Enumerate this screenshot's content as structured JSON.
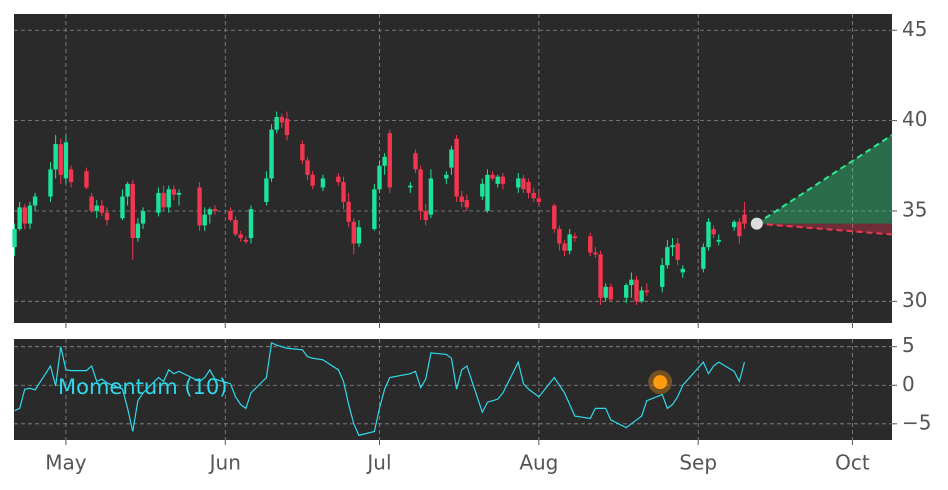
{
  "chart_data": [
    {
      "type": "candlestick",
      "grid": true,
      "up_color": "#1de39a",
      "down_color": "#f2364f",
      "xlim": [
        -10.1,
        160.7
      ],
      "xticks": [
        0,
        31,
        61,
        92,
        123,
        153
      ],
      "ylim": [
        28.8,
        45.9
      ],
      "yticks": [
        30,
        35,
        40,
        45
      ],
      "candles": [
        [
          -10,
          33.0,
          34.3,
          32.5,
          34.0
        ],
        [
          -9,
          34.0,
          35.5,
          33.9,
          35.2
        ],
        [
          -8,
          35.2,
          35.4,
          34.0,
          34.3
        ],
        [
          -7,
          34.3,
          35.5,
          34.0,
          35.3
        ],
        [
          -6,
          35.3,
          36.0,
          35.0,
          35.8
        ],
        [
          -3,
          35.8,
          37.7,
          35.5,
          37.3
        ],
        [
          -2,
          37.3,
          39.2,
          36.8,
          38.7
        ],
        [
          -1,
          38.7,
          39.0,
          36.5,
          37.0
        ],
        [
          0,
          36.8,
          39.2,
          36.5,
          38.8
        ],
        [
          1,
          37.3,
          37.5,
          36.3,
          36.6
        ],
        [
          4,
          37.2,
          37.4,
          36.2,
          36.3
        ],
        [
          5,
          35.8,
          36.0,
          34.9,
          35.0
        ],
        [
          6,
          35.0,
          35.6,
          34.6,
          35.3
        ],
        [
          7,
          35.3,
          35.6,
          34.7,
          34.9
        ],
        [
          8,
          34.9,
          35.2,
          34.2,
          34.5
        ],
        [
          11,
          34.6,
          36.2,
          34.5,
          35.8
        ],
        [
          12,
          35.8,
          36.6,
          35.3,
          36.5
        ],
        [
          13,
          36.5,
          36.7,
          32.3,
          33.5
        ],
        [
          14,
          33.5,
          34.6,
          33.3,
          34.3
        ],
        [
          15,
          34.3,
          35.2,
          34.0,
          35.0
        ],
        [
          18,
          34.9,
          36.3,
          34.7,
          36.0
        ],
        [
          19,
          36.0,
          36.4,
          35.0,
          35.2
        ],
        [
          20,
          35.2,
          36.4,
          34.9,
          36.2
        ],
        [
          21,
          36.2,
          36.4,
          35.6,
          35.9
        ],
        [
          22,
          35.9,
          36.2,
          35.3,
          36.0
        ],
        [
          26,
          36.3,
          36.6,
          33.9,
          34.2
        ],
        [
          27,
          34.2,
          35.2,
          33.9,
          34.8
        ],
        [
          28,
          34.8,
          35.2,
          34.3,
          35.1
        ],
        [
          29,
          35.1,
          35.3,
          34.8,
          35.0
        ],
        [
          32,
          35.0,
          35.2,
          34.4,
          34.5
        ],
        [
          33,
          34.5,
          34.7,
          33.6,
          33.7
        ],
        [
          34,
          33.7,
          33.9,
          33.3,
          33.5
        ],
        [
          35,
          33.4,
          33.6,
          33.2,
          33.3
        ],
        [
          36,
          33.5,
          35.3,
          33.2,
          35.1
        ],
        [
          39,
          35.5,
          37.2,
          35.3,
          36.8
        ],
        [
          40,
          36.8,
          39.8,
          36.6,
          39.5
        ],
        [
          41,
          39.5,
          40.5,
          39.3,
          40.2
        ],
        [
          42,
          40.2,
          40.4,
          39.6,
          39.9
        ],
        [
          43,
          40.1,
          40.5,
          38.9,
          39.2
        ],
        [
          46,
          38.7,
          38.9,
          37.6,
          37.8
        ],
        [
          47,
          37.8,
          38.0,
          36.7,
          37.0
        ],
        [
          48,
          37.0,
          37.2,
          36.2,
          36.4
        ],
        [
          50,
          36.3,
          37.0,
          36.1,
          36.8
        ],
        [
          53,
          36.9,
          37.1,
          36.4,
          36.6
        ],
        [
          54,
          36.6,
          36.9,
          35.1,
          35.5
        ],
        [
          55,
          35.5,
          36.0,
          34.1,
          34.4
        ],
        [
          56,
          34.4,
          34.6,
          32.6,
          33.2
        ],
        [
          57,
          33.2,
          34.5,
          33.0,
          34.1
        ],
        [
          60,
          34.0,
          36.5,
          33.9,
          36.2
        ],
        [
          61,
          36.2,
          37.8,
          36.0,
          37.5
        ],
        [
          62,
          37.5,
          38.2,
          37.0,
          38.0
        ],
        [
          63,
          39.3,
          39.5,
          36.0,
          36.3
        ],
        [
          67,
          36.3,
          36.6,
          36.0,
          36.4
        ],
        [
          68,
          38.2,
          38.4,
          37.1,
          37.3
        ],
        [
          69,
          37.3,
          37.5,
          34.5,
          35.0
        ],
        [
          70,
          35.0,
          35.4,
          34.2,
          34.5
        ],
        [
          71,
          34.8,
          37.3,
          34.6,
          36.8
        ],
        [
          74,
          36.8,
          37.2,
          36.5,
          37.0
        ],
        [
          75,
          37.4,
          38.6,
          37.0,
          38.4
        ],
        [
          76,
          39.0,
          39.2,
          35.5,
          35.8
        ],
        [
          77,
          35.8,
          36.1,
          35.2,
          35.5
        ],
        [
          78,
          35.6,
          35.9,
          35.0,
          35.2
        ],
        [
          81,
          35.8,
          36.8,
          35.6,
          36.5
        ],
        [
          82,
          35.0,
          37.3,
          34.9,
          37.0
        ],
        [
          83,
          37.0,
          37.2,
          36.7,
          36.8
        ],
        [
          84,
          36.5,
          37.0,
          36.3,
          36.9
        ],
        [
          85,
          36.9,
          37.1,
          36.2,
          36.5
        ],
        [
          88,
          36.3,
          37.1,
          36.0,
          36.8
        ],
        [
          89,
          36.8,
          37.0,
          36.0,
          36.2
        ],
        [
          90,
          36.6,
          36.8,
          35.7,
          36.0
        ],
        [
          91,
          36.0,
          36.3,
          35.5,
          35.7
        ],
        [
          92,
          35.7,
          36.0,
          35.3,
          35.5
        ],
        [
          95,
          35.3,
          35.4,
          33.8,
          34.0
        ],
        [
          96,
          34.0,
          34.2,
          32.8,
          33.2
        ],
        [
          97,
          33.2,
          33.4,
          32.5,
          32.8
        ],
        [
          98,
          32.8,
          34.0,
          32.6,
          33.7
        ],
        [
          99,
          33.6,
          33.8,
          33.3,
          33.5
        ],
        [
          102,
          33.6,
          33.8,
          32.5,
          32.7
        ],
        [
          103,
          32.7,
          33.0,
          32.4,
          32.6
        ],
        [
          104,
          32.6,
          32.8,
          29.8,
          30.2
        ],
        [
          105,
          30.2,
          31.0,
          30.0,
          30.8
        ],
        [
          106,
          30.8,
          31.0,
          30.0,
          30.1
        ],
        [
          109,
          30.2,
          31.0,
          29.9,
          30.9
        ],
        [
          110,
          30.9,
          31.6,
          30.2,
          31.2
        ],
        [
          111,
          31.2,
          31.4,
          29.8,
          30.0
        ],
        [
          112,
          30.0,
          30.8,
          29.9,
          30.6
        ],
        [
          113,
          30.6,
          31.0,
          30.3,
          30.5
        ],
        [
          116,
          30.8,
          32.4,
          30.5,
          32.0
        ],
        [
          117,
          32.0,
          33.4,
          31.8,
          33.0
        ],
        [
          118,
          33.0,
          33.5,
          32.5,
          33.1
        ],
        [
          119,
          33.2,
          33.5,
          32.0,
          32.3
        ],
        [
          120,
          31.6,
          32.0,
          31.3,
          31.8
        ],
        [
          124,
          31.8,
          33.2,
          31.6,
          33.0
        ],
        [
          125,
          33.0,
          34.6,
          32.8,
          34.4
        ],
        [
          126,
          34.0,
          34.2,
          33.5,
          33.7
        ],
        [
          127,
          33.3,
          33.7,
          33.1,
          33.4
        ],
        [
          130,
          34.1,
          34.5,
          33.9,
          34.4
        ],
        [
          131,
          34.4,
          34.6,
          33.2,
          33.6
        ],
        [
          132,
          34.8,
          35.5,
          34.0,
          34.3
        ]
      ],
      "forecast": {
        "x": [
          134.4,
          160.7
        ],
        "start": 34.3,
        "high": 39.2,
        "low": 33.7,
        "high_color": "#2ee88f",
        "low_color": "#f2364f"
      }
    },
    {
      "type": "line",
      "label": "Momentum (10)",
      "color": "#2fd9ea",
      "grid": true,
      "xlim": [
        -10.1,
        160.7
      ],
      "xticks": [
        {
          "value": 0,
          "label": "May"
        },
        {
          "value": 31,
          "label": "Jun"
        },
        {
          "value": 61,
          "label": "Jul"
        },
        {
          "value": 92,
          "label": "Aug"
        },
        {
          "value": 123,
          "label": "Sep"
        },
        {
          "value": 153,
          "label": "Oct"
        }
      ],
      "ylim": [
        -7.1,
        6.0
      ],
      "yticks": [
        {
          "value": -5,
          "label": "−5"
        },
        0,
        5
      ],
      "x": [
        -10,
        -9,
        -8,
        -7,
        -6,
        -3,
        -2,
        -1,
        0,
        1,
        4,
        5,
        6,
        7,
        8,
        11,
        12,
        13,
        14,
        15,
        18,
        19,
        20,
        21,
        22,
        26,
        27,
        28,
        29,
        32,
        33,
        34,
        35,
        36,
        39,
        40,
        41,
        42,
        43,
        46,
        47,
        48,
        50,
        53,
        54,
        55,
        56,
        57,
        60,
        61,
        62,
        63,
        67,
        68,
        69,
        70,
        71,
        74,
        75,
        76,
        77,
        78,
        81,
        82,
        83,
        84,
        85,
        88,
        89,
        90,
        91,
        92,
        95,
        96,
        97,
        98,
        99,
        102,
        103,
        104,
        105,
        106,
        109,
        110,
        111,
        112,
        113,
        116,
        117,
        118,
        119,
        120,
        124,
        125,
        126,
        127,
        130,
        131,
        132
      ],
      "values": [
        -3.3,
        -3.0,
        -0.5,
        -0.4,
        -0.6,
        2.5,
        -0.1,
        5.0,
        2.0,
        1.9,
        1.9,
        2.5,
        0.5,
        0.8,
        0.3,
        -0.5,
        -3.0,
        -6.0,
        -2.0,
        -1.0,
        1.0,
        0.5,
        2.0,
        1.5,
        1.8,
        0.5,
        1.0,
        2.0,
        0.8,
        0.2,
        -1.5,
        -2.5,
        -3.0,
        -1.0,
        1.0,
        5.5,
        5.2,
        5.0,
        4.8,
        4.6,
        3.7,
        3.5,
        3.3,
        2.0,
        0.5,
        -2.5,
        -5.0,
        -6.5,
        -6.0,
        -3.0,
        -0.5,
        1.0,
        1.5,
        1.8,
        -0.3,
        0.8,
        4.2,
        4.0,
        3.5,
        -0.5,
        2.0,
        2.5,
        -3.5,
        -2.2,
        -2.0,
        -1.8,
        -1.0,
        3.0,
        0.2,
        -0.5,
        -1.0,
        -1.5,
        1.0,
        0.0,
        -1.0,
        -2.5,
        -4.0,
        -4.3,
        -3.0,
        -3.0,
        -3.0,
        -4.5,
        -5.5,
        -5.0,
        -4.5,
        -4.0,
        -2.0,
        -1.2,
        -3.0,
        -2.5,
        -1.5,
        0.0,
        3.0,
        1.5,
        2.5,
        3.0,
        1.8,
        0.5,
        3.0
      ],
      "highlight": {
        "x": 115.6,
        "value": 0.4,
        "color": "#ff9b0f"
      }
    }
  ]
}
